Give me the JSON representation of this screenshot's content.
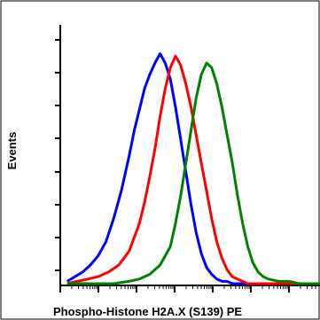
{
  "chart_data": {
    "type": "line",
    "title": "",
    "xlabel": "Phospho-Histone H2A.X (S139) PE",
    "ylabel": "Events",
    "xlim": [
      0,
      100
    ],
    "ylim": [
      0,
      100
    ],
    "grid": false,
    "legend": "none",
    "series": [
      {
        "color": "#0000ff",
        "x": [
          2,
          5,
          8,
          11,
          14,
          17,
          20,
          23,
          26,
          28,
          30,
          32,
          34,
          36,
          38,
          40,
          42,
          44,
          46,
          48,
          50,
          52,
          54,
          56,
          58,
          60,
          62,
          64,
          66,
          68,
          72,
          76,
          80,
          85,
          90,
          95,
          100
        ],
        "y": [
          1,
          3,
          5,
          8,
          12,
          18,
          28,
          40,
          55,
          66,
          75,
          84,
          90,
          95,
          99,
          95,
          88,
          76,
          62,
          48,
          34,
          22,
          13,
          7,
          4,
          2,
          1,
          1,
          0,
          0,
          0,
          0,
          0,
          0,
          0,
          0,
          0
        ]
      },
      {
        "color": "#ff0000",
        "x": [
          2,
          6,
          10,
          14,
          18,
          22,
          26,
          30,
          32,
          34,
          36,
          38,
          40,
          42,
          44,
          46,
          48,
          50,
          52,
          54,
          56,
          58,
          60,
          62,
          64,
          66,
          68,
          70,
          72,
          76,
          80,
          85,
          90,
          95,
          100
        ],
        "y": [
          0,
          1,
          2,
          3,
          5,
          8,
          14,
          26,
          35,
          46,
          58,
          72,
          84,
          93,
          98,
          94,
          86,
          76,
          64,
          52,
          40,
          28,
          18,
          11,
          6,
          3,
          2,
          1,
          0,
          0,
          0,
          0,
          0,
          0,
          0
        ]
      },
      {
        "color": "#008000",
        "x": [
          2,
          10,
          20,
          26,
          30,
          34,
          38,
          42,
          44,
          46,
          48,
          50,
          52,
          54,
          56,
          58,
          60,
          62,
          64,
          66,
          68,
          70,
          72,
          74,
          76,
          78,
          80,
          84,
          88,
          92,
          96,
          100
        ],
        "y": [
          0,
          0,
          0,
          1,
          2,
          4,
          8,
          16,
          26,
          38,
          52,
          66,
          80,
          90,
          95,
          93,
          86,
          76,
          64,
          52,
          38,
          26,
          16,
          9,
          5,
          3,
          2,
          1,
          1,
          0,
          0,
          0
        ]
      }
    ]
  }
}
